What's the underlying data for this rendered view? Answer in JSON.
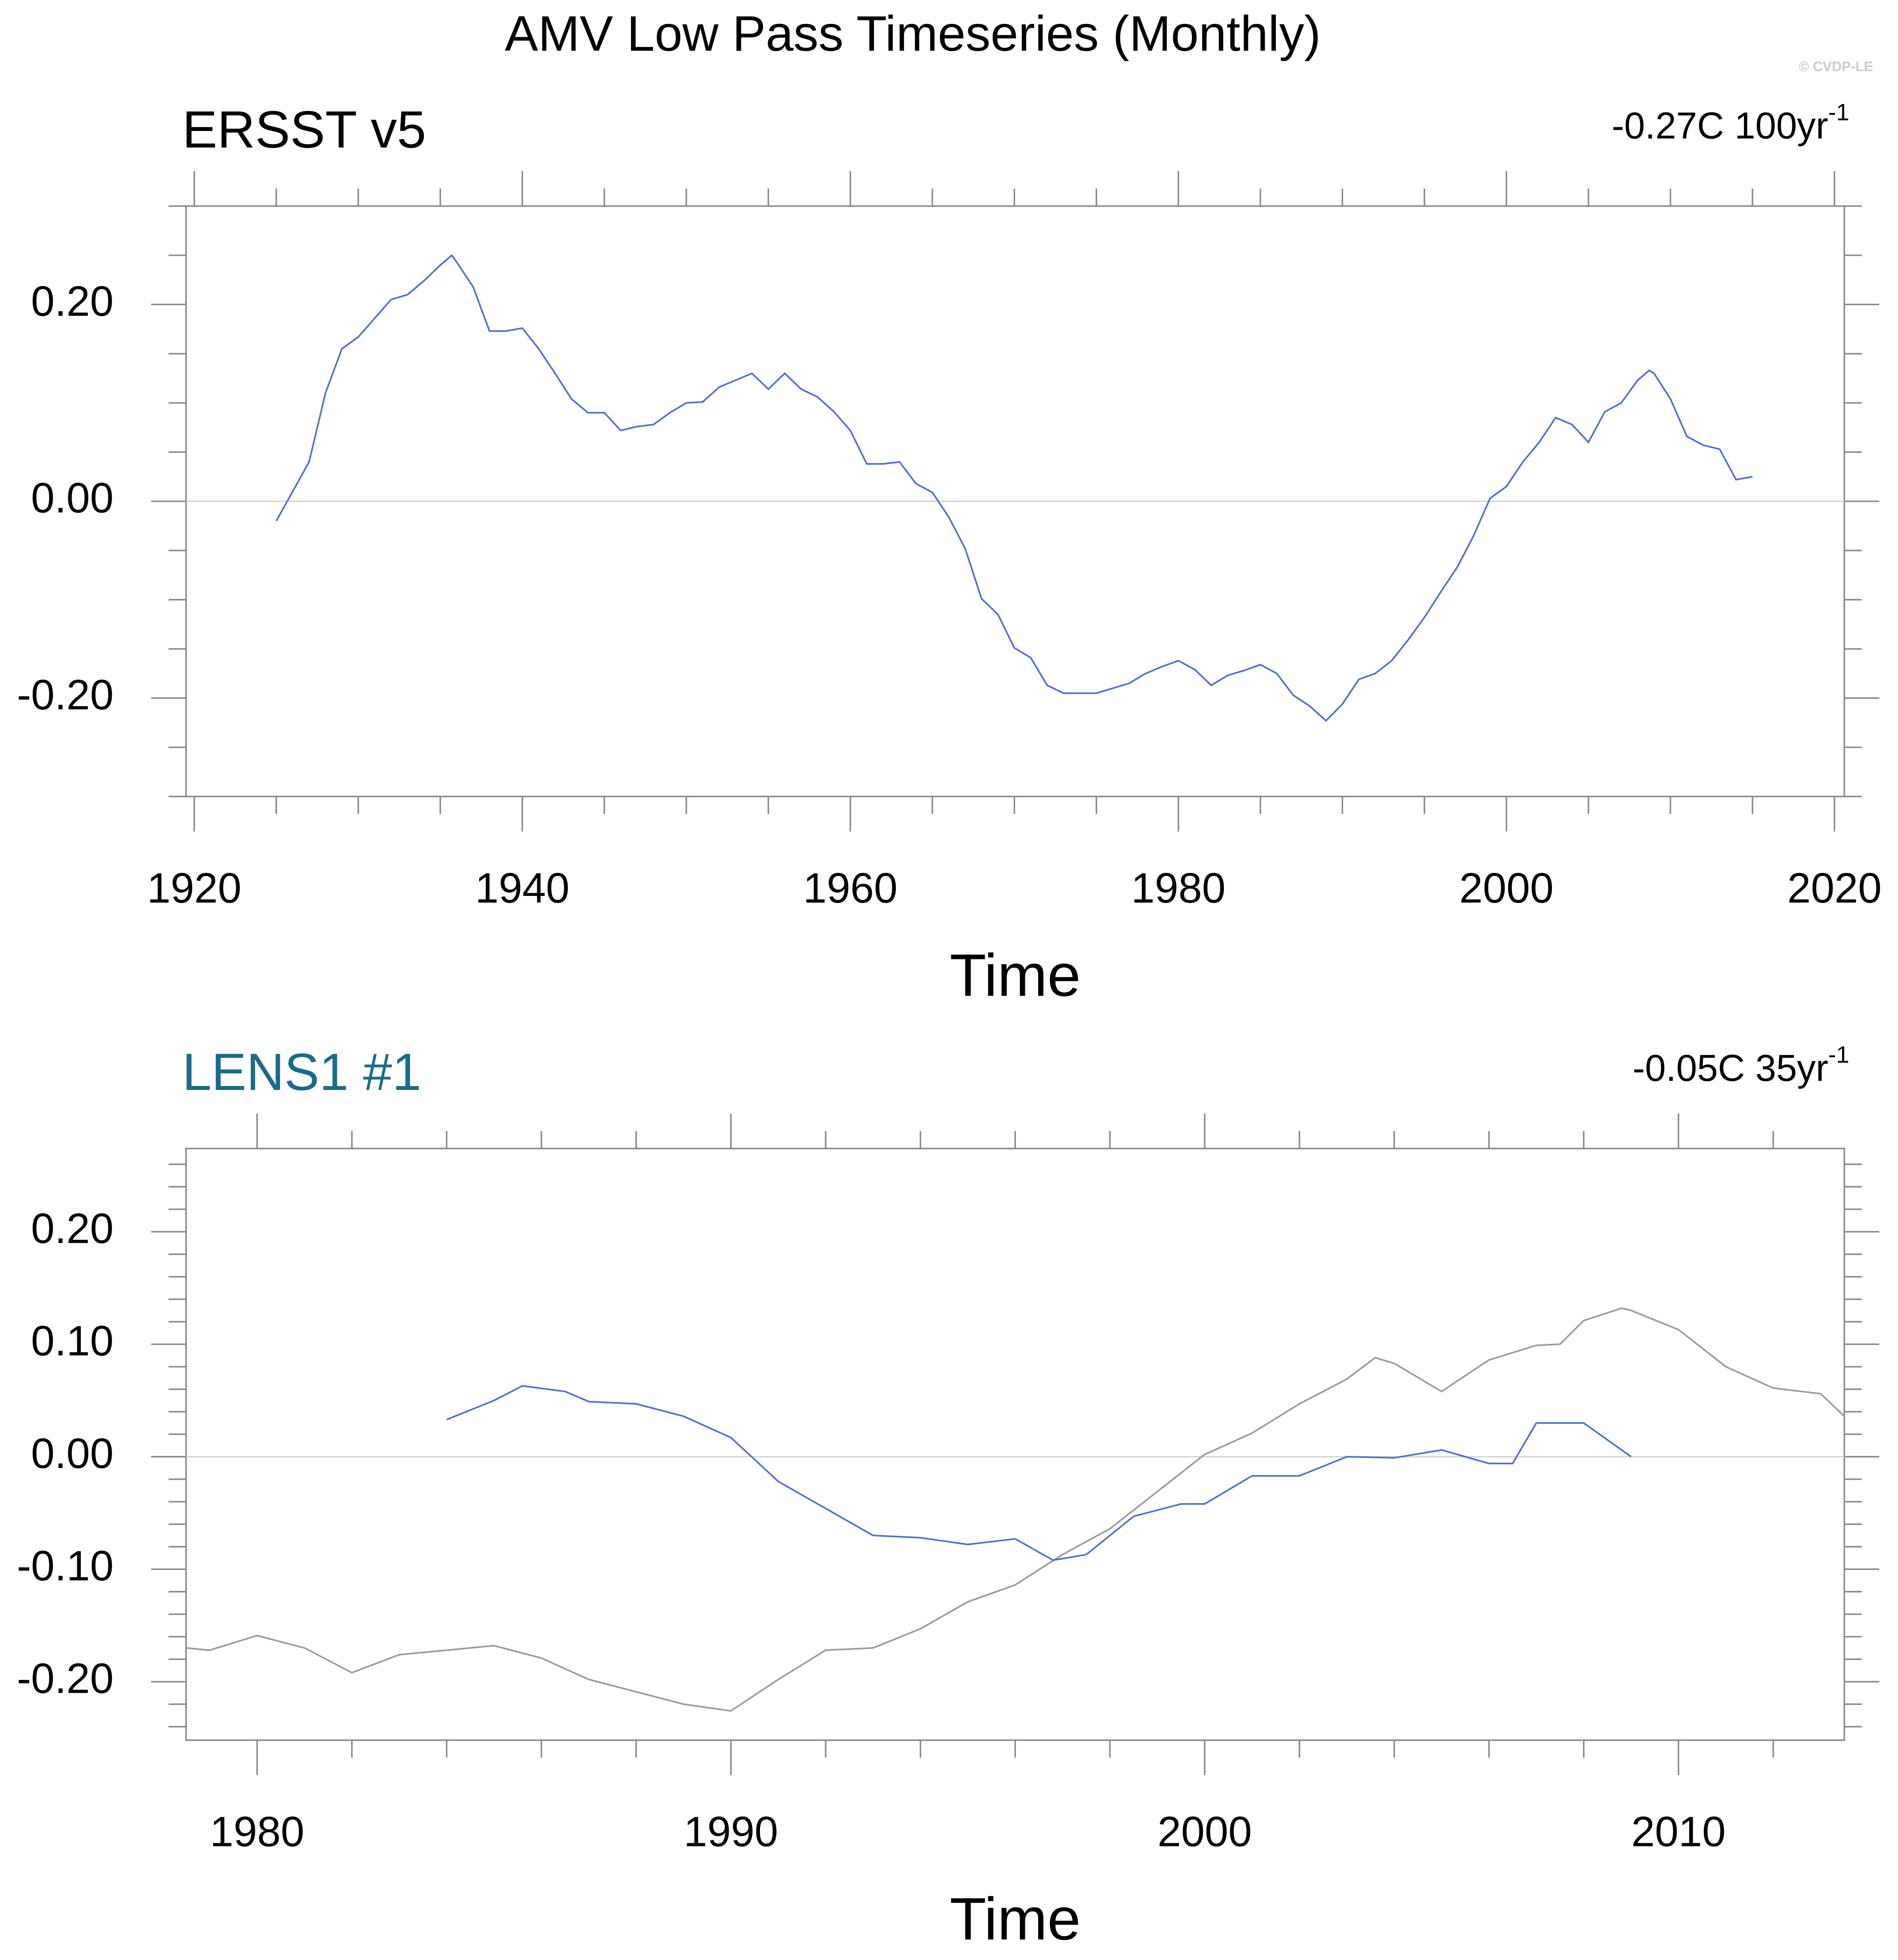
{
  "title": "AMV Low Pass Timeseries (Monthly)",
  "watermark": "© CVDP-LE",
  "chart_data": [
    {
      "type": "line",
      "left_title": "ERSST v5",
      "left_title_color": "#000000",
      "right_title": "-0.27C 100yr",
      "right_title_sup": "-1",
      "xlabel": "Time",
      "xlim": [
        1919.5,
        2020.6
      ],
      "xticks": [
        1920,
        1940,
        1960,
        1980,
        2000,
        2020
      ],
      "xminorticks": [
        1925,
        1930,
        1935,
        1945,
        1950,
        1955,
        1965,
        1970,
        1975,
        1985,
        1990,
        1995,
        2005,
        2010,
        2015
      ],
      "ylim": [
        -0.3,
        0.3
      ],
      "yticks": [
        {
          "value": 0.2,
          "label": "0.20"
        },
        {
          "value": 0,
          "label": "0.00"
        },
        {
          "value": -0.2,
          "label": "-0.20"
        }
      ],
      "yminorticks": [
        -0.3,
        -0.25,
        -0.15,
        -0.1,
        -0.05,
        0.05,
        0.1,
        0.15,
        0.25,
        0.3
      ],
      "series": [
        {
          "color": "#4a6fd8",
          "x": [
            1925,
            1926,
            1927,
            1928,
            1929,
            1930,
            1931,
            1932,
            1933,
            1934,
            1935,
            1935.7,
            1936,
            1937,
            1938,
            1939,
            1940,
            1941,
            1942,
            1943,
            1944,
            1945,
            1946,
            1947,
            1948,
            1949,
            1950,
            1951,
            1952,
            1953,
            1954,
            1955,
            1956,
            1957,
            1958,
            1959,
            1960,
            1961,
            1962,
            1963,
            1964,
            1965,
            1966,
            1967,
            1968,
            1969,
            1970,
            1971,
            1972,
            1973,
            1974,
            1975,
            1976,
            1977,
            1978,
            1979,
            1980,
            1981,
            1982,
            1983,
            1984,
            1985,
            1986,
            1987,
            1988,
            1989,
            1990,
            1991,
            1992,
            1993,
            1994,
            1995,
            1996,
            1997,
            1998,
            1999,
            2000,
            2001,
            2002,
            2003,
            2004,
            2005,
            2006,
            2007,
            2008,
            2008.7,
            2009,
            2010,
            2011,
            2012,
            2013,
            2014,
            2015
          ],
          "values": [
            -0.02,
            0.01,
            0.04,
            0.11,
            0.155,
            0.167,
            0.186,
            0.205,
            0.21,
            0.224,
            0.24,
            0.25,
            0.243,
            0.218,
            0.173,
            0.173,
            0.176,
            0.155,
            0.13,
            0.104,
            0.09,
            0.09,
            0.072,
            0.076,
            0.078,
            0.09,
            0.1,
            0.101,
            0.116,
            0.123,
            0.13,
            0.114,
            0.13,
            0.114,
            0.106,
            0.091,
            0.072,
            0.038,
            0.038,
            0.04,
            0.018,
            0.009,
            -0.016,
            -0.048,
            -0.099,
            -0.115,
            -0.149,
            -0.159,
            -0.187,
            -0.195,
            -0.195,
            -0.195,
            -0.19,
            -0.185,
            -0.175,
            -0.168,
            -0.162,
            -0.171,
            -0.187,
            -0.177,
            -0.172,
            -0.166,
            -0.175,
            -0.197,
            -0.208,
            -0.223,
            -0.206,
            -0.181,
            -0.175,
            -0.162,
            -0.141,
            -0.118,
            -0.092,
            -0.067,
            -0.035,
            0.003,
            0.015,
            0.04,
            0.06,
            0.085,
            0.078,
            0.06,
            0.091,
            0.1,
            0.123,
            0.133,
            0.13,
            0.104,
            0.066,
            0.057,
            0.053,
            0.022,
            0.025
          ]
        }
      ]
    },
    {
      "type": "line",
      "left_title": "LENS1 #1",
      "left_title_color": "#1a6b8a",
      "right_title": "-0.05C 35yr",
      "right_title_sup": "-1",
      "xlabel": "Time",
      "xlim": [
        1978.5,
        2013.5
      ],
      "xticks": [
        1980,
        1990,
        2000,
        2010
      ],
      "xminorticks": [
        1982,
        1984,
        1986,
        1988,
        1992,
        1994,
        1996,
        1998,
        2002,
        2004,
        2006,
        2008,
        2012
      ],
      "ylim": [
        -0.252,
        0.274
      ],
      "yticks": [
        {
          "value": 0.2,
          "label": "0.20"
        },
        {
          "value": 0.1,
          "label": "0.10"
        },
        {
          "value": 0,
          "label": "0.00"
        },
        {
          "value": -0.1,
          "label": "-0.10"
        },
        {
          "value": -0.2,
          "label": "-0.20"
        }
      ],
      "yminorticks": [
        -0.24,
        -0.22,
        -0.18,
        -0.16,
        -0.14,
        -0.12,
        -0.08,
        -0.06,
        -0.04,
        -0.02,
        0.02,
        0.04,
        0.06,
        0.08,
        0.12,
        0.14,
        0.16,
        0.18,
        0.22,
        0.24,
        0.26
      ],
      "series": [
        {
          "color": "#9a9a9a",
          "x": [
            1978.5,
            1979,
            1980,
            1981,
            1982,
            1983,
            1984,
            1985,
            1986,
            1987,
            1988,
            1989,
            1990,
            1991,
            1992,
            1993,
            1994,
            1995,
            1996,
            1997,
            1998,
            1999,
            2000,
            2001,
            2002,
            2003,
            2003.6,
            2004,
            2005,
            2006,
            2007,
            2007.5,
            2008,
            2008.8,
            2009,
            2010,
            2011,
            2012,
            2013,
            2013.5
          ],
          "values": [
            -0.17,
            -0.172,
            -0.159,
            -0.17,
            -0.192,
            -0.176,
            -0.172,
            -0.168,
            -0.179,
            -0.198,
            -0.209,
            -0.22,
            -0.226,
            -0.198,
            -0.172,
            -0.17,
            -0.153,
            -0.129,
            -0.114,
            -0.087,
            -0.064,
            -0.031,
            0.002,
            0.021,
            0.047,
            0.069,
            0.088,
            0.083,
            0.058,
            0.086,
            0.099,
            0.1,
            0.121,
            0.132,
            0.13,
            0.113,
            0.08,
            0.061,
            0.056,
            0.036
          ]
        },
        {
          "color": "#4a6fd8",
          "x": [
            1984,
            1985,
            1985.6,
            1986.5,
            1987,
            1988,
            1989,
            1990,
            1991,
            1992,
            1993,
            1994,
            1995,
            1996,
            1996.8,
            1997.5,
            1998.5,
            1999.5,
            2000,
            2001,
            2002,
            2003,
            2004,
            2005,
            2006,
            2006.5,
            2007,
            2008,
            2009
          ],
          "values": [
            0.033,
            0.05,
            0.063,
            0.058,
            0.049,
            0.047,
            0.036,
            0.017,
            -0.022,
            -0.046,
            -0.07,
            -0.072,
            -0.078,
            -0.073,
            -0.092,
            -0.087,
            -0.053,
            -0.042,
            -0.042,
            -0.017,
            -0.017,
            0,
            -0.001,
            0.006,
            -0.006,
            -0.006,
            0.03,
            0.03,
            0
          ]
        }
      ]
    }
  ]
}
